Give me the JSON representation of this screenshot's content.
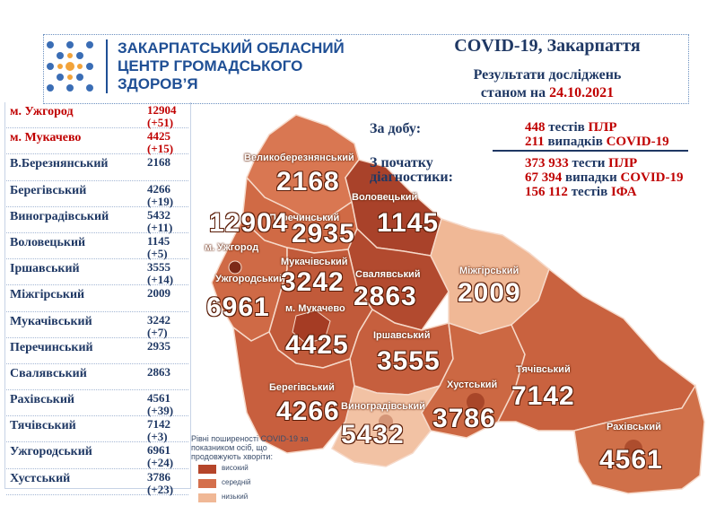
{
  "org": {
    "line1": "ЗАКАРПАТСЬКИЙ ОБЛАСНИЙ",
    "line2": "ЦЕНТР ГРОМАДСЬКОГО",
    "line3": "ЗДОРОВ’Я"
  },
  "header": {
    "title": "COVID-19, Закарпаття",
    "subtitle_line1": "Результати досліджень",
    "subtitle_prefix": "станом на ",
    "date": "24.10.2021"
  },
  "districts": [
    {
      "name": "м. Ужгород",
      "total": "12904",
      "delta": "(+51)",
      "highlight": true
    },
    {
      "name": "м. Мукачево",
      "total": "4425",
      "delta": "(+15)",
      "highlight": true
    },
    {
      "name": "В.Березнянський",
      "total": "2168",
      "delta": "",
      "highlight": false
    },
    {
      "name": "Берегівський",
      "total": "4266",
      "delta": "(+19)",
      "highlight": false
    },
    {
      "name": "Виноградівський",
      "total": "5432",
      "delta": "(+11)",
      "highlight": false
    },
    {
      "name": "Воловецький",
      "total": "1145",
      "delta": "(+5)",
      "highlight": false
    },
    {
      "name": "Іршавський",
      "total": "3555",
      "delta": "(+14)",
      "highlight": false
    },
    {
      "name": "Міжгірський",
      "total": "2009",
      "delta": "",
      "highlight": false
    },
    {
      "name": "Мукачівський",
      "total": "3242",
      "delta": "(+7)",
      "highlight": false
    },
    {
      "name": "Перечинський",
      "total": "2935",
      "delta": "",
      "highlight": false
    },
    {
      "name": "Свалявський",
      "total": "2863",
      "delta": "",
      "highlight": false
    },
    {
      "name": "Рахівський",
      "total": "4561",
      "delta": "(+39)",
      "highlight": false
    },
    {
      "name": "Тячівський",
      "total": "7142",
      "delta": "(+3)",
      "highlight": false
    },
    {
      "name": "Ужгородський",
      "total": "6961",
      "delta": "(+24)",
      "highlight": false
    },
    {
      "name": "Хустський",
      "total": "3786",
      "delta": "(+23)",
      "highlight": false
    }
  ],
  "stats": {
    "day_label": "За добу:",
    "since_label_1": "З початку",
    "since_label_2": "діагностики:",
    "day_tests_n": "448",
    "day_tests_u": " тестів ",
    "day_tests_k": "ПЛР",
    "day_cases_n": "211",
    "day_cases_u": " випадків ",
    "day_cases_k": "COVID-19",
    "total_tests_n": "373 933",
    "total_tests_u": " тести ",
    "total_tests_k": "ПЛР",
    "total_cases_n": "67 394",
    "total_cases_u": " випадки ",
    "total_cases_k": "COVID-19",
    "total_ifa_n": "156 112",
    "total_ifa_u": " тестів ",
    "total_ifa_k": "ІФА"
  },
  "map": {
    "labels": {
      "velykobereznyanskyi": "Великоберезнянський",
      "volovetskyi": "Воловецький",
      "perechynskyi": "Перечинський",
      "uzhhorod_city": "м. Ужгород",
      "uzhhorodskyi": "Ужгородський",
      "mukachivskyi": "Мукачівський",
      "svalyavskyi": "Свалявський",
      "mizhhirskyi": "Міжгірський",
      "mukachevo_city": "м. Мукачево",
      "irshavskyi": "Іршавський",
      "khustskyi": "Хустський",
      "tyachivskyi": "Тячівський",
      "berehivskyi": "Берегівський",
      "vynohradivskyi": "Виноградівський",
      "rakhivskyi": "Рахівський"
    },
    "numbers": {
      "velykobereznyanskyi": "2168",
      "volovetskyi": "1145",
      "perechynskyi": "2935",
      "uzhhorod_city": "12904",
      "uzhhorodskyi": "6961",
      "mukachivskyi": "3242",
      "svalyavskyi": "2863",
      "mizhhirskyi": "2009",
      "mukachevo_city": "4425",
      "irshavskyi": "3555",
      "khustskyi": "3786",
      "tyachivskyi": "7142",
      "berehivskyi": "4266",
      "vynohradivskyi": "5432",
      "rakhivskyi": "4561"
    }
  },
  "legend": {
    "title": "Рівні поширеності COVID-19 за показником осіб, що продовжують хворіти:",
    "high": "високий",
    "medium": "середній",
    "low": "низький"
  },
  "colors": {
    "high": "#b5452a",
    "medium": "#d46f4c",
    "low": "#f0b896",
    "accent_red": "#c00000",
    "navy": "#1f3864",
    "brand_blue": "#1f4f95"
  }
}
